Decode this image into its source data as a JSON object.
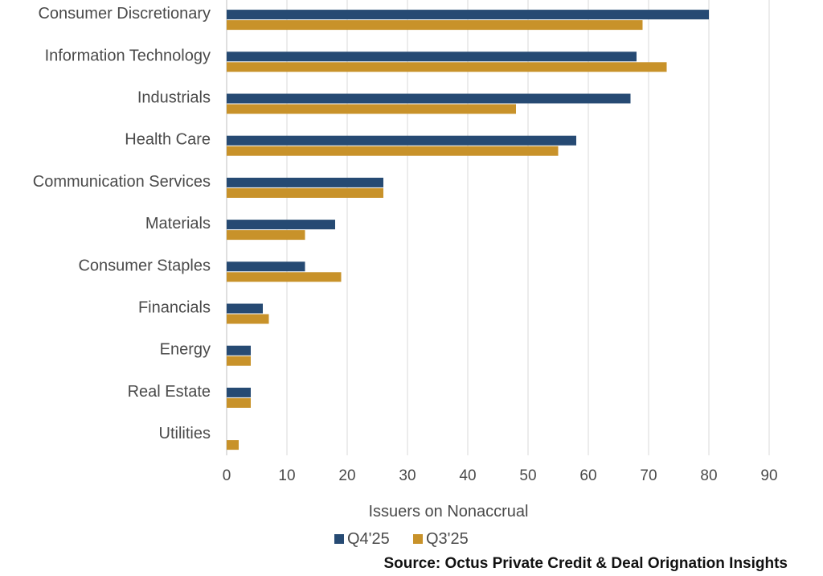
{
  "chart_data": {
    "type": "bar",
    "orientation": "horizontal",
    "categories": [
      "Consumer Discretionary",
      "Information Technology",
      "Industrials",
      "Health Care",
      "Communication Services",
      "Materials",
      "Consumer Staples",
      "Financials",
      "Energy",
      "Real Estate",
      "Utilities"
    ],
    "series": [
      {
        "name": "Q4'25",
        "color": "#264a73",
        "values": [
          80,
          68,
          67,
          58,
          26,
          18,
          13,
          6,
          4,
          4,
          0
        ]
      },
      {
        "name": "Q3'25",
        "color": "#c8922a",
        "values": [
          69,
          73,
          48,
          55,
          26,
          13,
          19,
          7,
          4,
          4,
          2
        ]
      }
    ],
    "xlabel": "Issuers on Nonaccrual",
    "xlim": [
      0,
      90
    ],
    "xticks": [
      "0",
      "10",
      "20",
      "30",
      "40",
      "50",
      "60",
      "70",
      "80",
      "90"
    ],
    "grid": true,
    "legend_position": "bottom"
  },
  "source": "Source: Octus Private Credit & Deal Orignation Insights"
}
